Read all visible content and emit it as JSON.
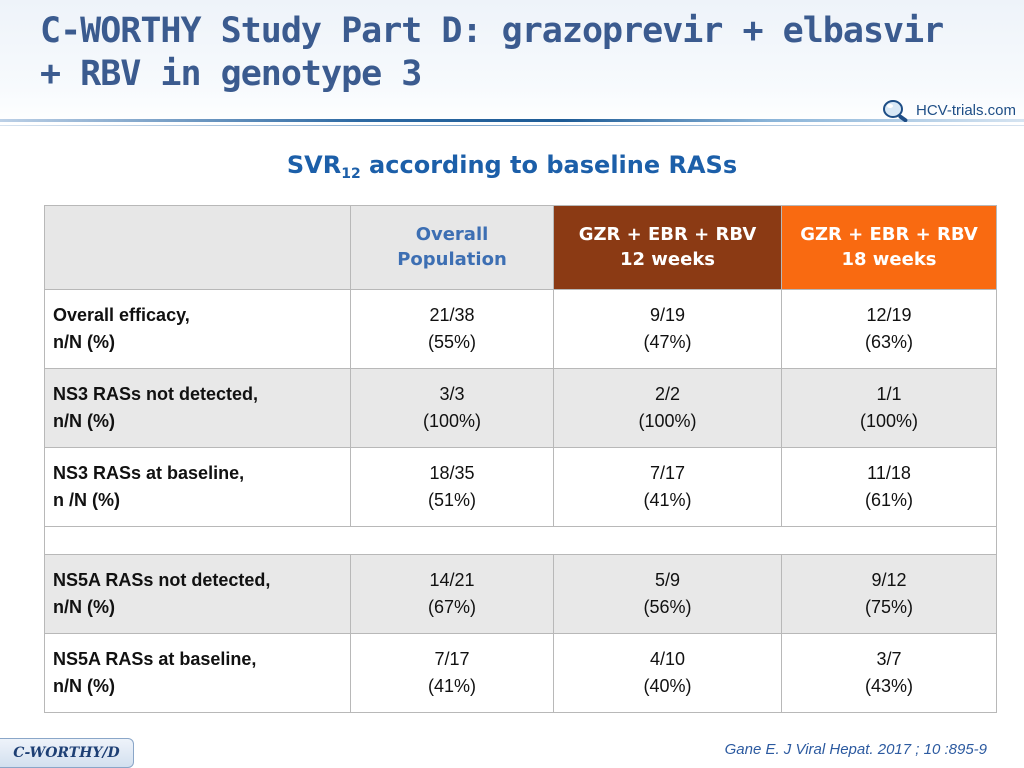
{
  "title": {
    "line1": "C-WORTHY Study Part D: grazoprevir + elbasvir",
    "line2": "+ RBV in genotype 3"
  },
  "logo": {
    "text": "HCV-trials.com"
  },
  "subtitle": {
    "main": "SVR",
    "sub": "12",
    "rest": " according to baseline RASs"
  },
  "table": {
    "headers": [
      {
        "line1": "",
        "line2": ""
      },
      {
        "line1": "Overall",
        "line2": "Population"
      },
      {
        "line1": "GZR + EBR + RBV",
        "line2": "12 weeks"
      },
      {
        "line1": "GZR + EBR + RBV",
        "line2": "18 weeks"
      }
    ],
    "rows": [
      {
        "label1": "Overall efficacy,",
        "label2": "n/N (%)",
        "cells": [
          {
            "frac": "21/38",
            "pct": "(55%)"
          },
          {
            "frac": "9/19",
            "pct": "(47%)"
          },
          {
            "frac": "12/19",
            "pct": "(63%)"
          }
        ]
      },
      {
        "label1": "NS3 RASs not detected,",
        "label2": "n/N (%)",
        "cells": [
          {
            "frac": "3/3",
            "pct": "(100%)"
          },
          {
            "frac": "2/2",
            "pct": "(100%)"
          },
          {
            "frac": "1/1",
            "pct": "(100%)"
          }
        ]
      },
      {
        "label1": "NS3 RASs at baseline,",
        "label2": "n /N (%)",
        "cells": [
          {
            "frac": "18/35",
            "pct": "(51%)"
          },
          {
            "frac": "7/17",
            "pct": "(41%)"
          },
          {
            "frac": "11/18",
            "pct": "(61%)"
          }
        ]
      },
      {
        "label1": "NS5A RASs not detected,",
        "label2": "n/N (%)",
        "cells": [
          {
            "frac": "14/21",
            "pct": "(67%)"
          },
          {
            "frac": "5/9",
            "pct": "(56%)"
          },
          {
            "frac": "9/12",
            "pct": "(75%)"
          }
        ]
      },
      {
        "label1": "NS5A RASs at baseline,",
        "label2": "n/N (%)",
        "cells": [
          {
            "frac": "7/17",
            "pct": "(41%)"
          },
          {
            "frac": "4/10",
            "pct": "(40%)"
          },
          {
            "frac": "3/7",
            "pct": "(43%)"
          }
        ]
      }
    ]
  },
  "footer": {
    "badge": "C-WORTHY/D",
    "citation": "Gane E. J Viral Hepat. 2017 ; 10 :895-9"
  },
  "colors": {
    "title": "#3b5b8f",
    "subtitle": "#1c5fa9",
    "header_12w": "#8b3a14",
    "header_18w": "#f96a11",
    "overall_header_text": "#3d6fb3"
  }
}
